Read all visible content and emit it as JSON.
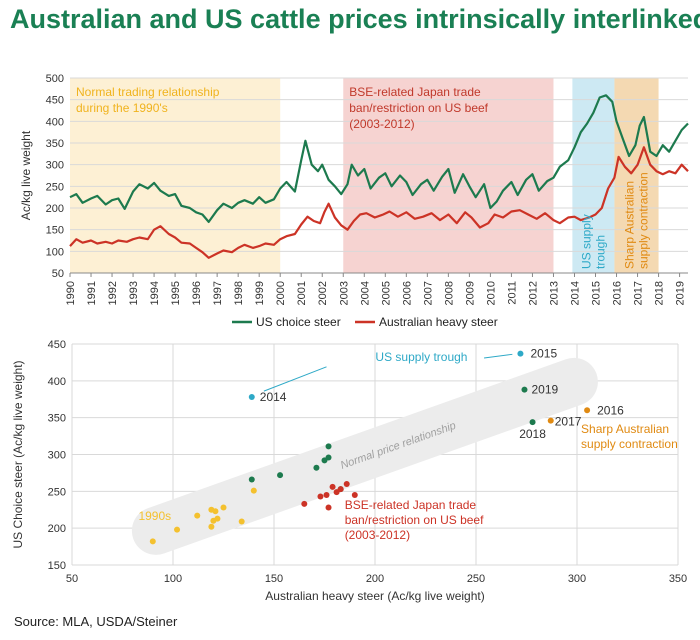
{
  "title": "Australian and US cattle prices intrinsically interlinked",
  "source": "Source: MLA, USDA/Steiner",
  "colors": {
    "us": "#1d7a4e",
    "aus": "#cc3326",
    "yellow": "#f4c12f",
    "cyan": "#2ea9c7",
    "orange": "#e08a12",
    "red": "#cc3326",
    "band": "#ececec"
  },
  "chart_data": [
    {
      "type": "line",
      "ylabel": "Ac/kg live weight",
      "ylim": [
        50,
        500
      ],
      "yticks": [
        50,
        100,
        150,
        200,
        250,
        300,
        350,
        400,
        450,
        500
      ],
      "xlim": [
        1990,
        2019.4
      ],
      "xticks": [
        "1990",
        "1991",
        "1992",
        "1993",
        "1994",
        "1995",
        "1996",
        "1997",
        "1998",
        "1999",
        "2000",
        "2001",
        "2002",
        "2003",
        "2004",
        "2005",
        "2006",
        "2007",
        "2008",
        "2009",
        "2010",
        "2011",
        "2012",
        "2013",
        "2014",
        "2015",
        "2016",
        "2017",
        "2018",
        "2019"
      ],
      "legend_position": "bottom",
      "shaded_periods": [
        {
          "label_lines": [
            "Normal trading relationship",
            "during the 1990's"
          ],
          "start": 1990.0,
          "end": 2000.0,
          "fill": "#fdf0d4",
          "text_color": "#f0b31e",
          "orientation": "horizontal"
        },
        {
          "label_lines": [
            "BSE-related Japan trade",
            "ban/restriction on US beef",
            "(2003-2012)"
          ],
          "start": 2003.0,
          "end": 2013.0,
          "fill": "#f6d3d1",
          "text_color": "#c0392b",
          "orientation": "horizontal"
        },
        {
          "label_lines": [
            "US supply",
            "trough"
          ],
          "start": 2013.9,
          "end": 2015.9,
          "fill": "#cde9f3",
          "text_color": "#2ea9c7",
          "orientation": "vertical"
        },
        {
          "label_lines": [
            "Sharp Australian",
            "supply contraction"
          ],
          "start": 2015.9,
          "end": 2018.0,
          "fill": "#f4d9b2",
          "text_color": "#e08a12",
          "orientation": "vertical"
        }
      ],
      "series": [
        {
          "name": "US choice steer",
          "points": [
            [
              1990.0,
              225
            ],
            [
              1990.3,
              232
            ],
            [
              1990.6,
              212
            ],
            [
              1991.0,
              222
            ],
            [
              1991.3,
              228
            ],
            [
              1991.7,
              208
            ],
            [
              1992.0,
              218
            ],
            [
              1992.3,
              222
            ],
            [
              1992.6,
              198
            ],
            [
              1993.0,
              238
            ],
            [
              1993.3,
              255
            ],
            [
              1993.7,
              245
            ],
            [
              1994.0,
              258
            ],
            [
              1994.3,
              240
            ],
            [
              1994.7,
              228
            ],
            [
              1995.0,
              232
            ],
            [
              1995.3,
              205
            ],
            [
              1995.7,
              200
            ],
            [
              1996.0,
              190
            ],
            [
              1996.3,
              185
            ],
            [
              1996.6,
              168
            ],
            [
              1997.0,
              195
            ],
            [
              1997.3,
              210
            ],
            [
              1997.7,
              200
            ],
            [
              1998.0,
              212
            ],
            [
              1998.3,
              218
            ],
            [
              1998.7,
              210
            ],
            [
              1999.0,
              225
            ],
            [
              1999.3,
              212
            ],
            [
              1999.7,
              220
            ],
            [
              2000.0,
              245
            ],
            [
              2000.3,
              260
            ],
            [
              2000.7,
              238
            ],
            [
              2001.0,
              310
            ],
            [
              2001.2,
              355
            ],
            [
              2001.5,
              300
            ],
            [
              2001.8,
              285
            ],
            [
              2002.0,
              300
            ],
            [
              2002.3,
              265
            ],
            [
              2002.6,
              250
            ],
            [
              2002.9,
              232
            ],
            [
              2003.2,
              255
            ],
            [
              2003.4,
              300
            ],
            [
              2003.7,
              275
            ],
            [
              2004.0,
              290
            ],
            [
              2004.3,
              245
            ],
            [
              2004.7,
              270
            ],
            [
              2005.0,
              280
            ],
            [
              2005.3,
              250
            ],
            [
              2005.7,
              275
            ],
            [
              2006.0,
              260
            ],
            [
              2006.3,
              230
            ],
            [
              2006.7,
              255
            ],
            [
              2007.0,
              265
            ],
            [
              2007.3,
              240
            ],
            [
              2007.7,
              272
            ],
            [
              2008.0,
              290
            ],
            [
              2008.3,
              235
            ],
            [
              2008.7,
              278
            ],
            [
              2009.0,
              250
            ],
            [
              2009.3,
              225
            ],
            [
              2009.7,
              255
            ],
            [
              2010.0,
              200
            ],
            [
              2010.3,
              215
            ],
            [
              2010.6,
              240
            ],
            [
              2011.0,
              260
            ],
            [
              2011.3,
              230
            ],
            [
              2011.7,
              265
            ],
            [
              2012.0,
              278
            ],
            [
              2012.3,
              240
            ],
            [
              2012.7,
              262
            ],
            [
              2013.0,
              270
            ],
            [
              2013.3,
              295
            ],
            [
              2013.7,
              310
            ],
            [
              2014.0,
              340
            ],
            [
              2014.3,
              375
            ],
            [
              2014.6,
              395
            ],
            [
              2014.9,
              420
            ],
            [
              2015.2,
              455
            ],
            [
              2015.5,
              460
            ],
            [
              2015.8,
              445
            ],
            [
              2016.0,
              400
            ],
            [
              2016.3,
              360
            ],
            [
              2016.6,
              320
            ],
            [
              2016.9,
              345
            ],
            [
              2017.1,
              390
            ],
            [
              2017.3,
              410
            ],
            [
              2017.6,
              330
            ],
            [
              2017.9,
              320
            ],
            [
              2018.2,
              345
            ],
            [
              2018.5,
              330
            ],
            [
              2018.8,
              355
            ],
            [
              2019.1,
              380
            ],
            [
              2019.4,
              395
            ]
          ]
        },
        {
          "name": "Australian heavy steer",
          "points": [
            [
              1990.0,
              112
            ],
            [
              1990.3,
              128
            ],
            [
              1990.6,
              120
            ],
            [
              1991.0,
              125
            ],
            [
              1991.3,
              118
            ],
            [
              1991.7,
              122
            ],
            [
              1992.0,
              118
            ],
            [
              1992.3,
              125
            ],
            [
              1992.7,
              122
            ],
            [
              1993.0,
              128
            ],
            [
              1993.3,
              132
            ],
            [
              1993.7,
              128
            ],
            [
              1994.0,
              150
            ],
            [
              1994.3,
              158
            ],
            [
              1994.7,
              140
            ],
            [
              1995.0,
              132
            ],
            [
              1995.3,
              120
            ],
            [
              1995.7,
              118
            ],
            [
              1996.0,
              108
            ],
            [
              1996.3,
              98
            ],
            [
              1996.6,
              85
            ],
            [
              1997.0,
              95
            ],
            [
              1997.3,
              102
            ],
            [
              1997.7,
              98
            ],
            [
              1998.0,
              108
            ],
            [
              1998.3,
              115
            ],
            [
              1998.7,
              108
            ],
            [
              1999.0,
              112
            ],
            [
              1999.3,
              118
            ],
            [
              1999.7,
              115
            ],
            [
              2000.0,
              128
            ],
            [
              2000.3,
              135
            ],
            [
              2000.7,
              140
            ],
            [
              2001.0,
              162
            ],
            [
              2001.3,
              180
            ],
            [
              2001.6,
              170
            ],
            [
              2001.9,
              165
            ],
            [
              2002.1,
              190
            ],
            [
              2002.3,
              210
            ],
            [
              2002.6,
              178
            ],
            [
              2002.9,
              160
            ],
            [
              2003.2,
              150
            ],
            [
              2003.5,
              170
            ],
            [
              2003.8,
              185
            ],
            [
              2004.1,
              188
            ],
            [
              2004.5,
              178
            ],
            [
              2004.9,
              185
            ],
            [
              2005.2,
              192
            ],
            [
              2005.6,
              180
            ],
            [
              2006.0,
              190
            ],
            [
              2006.4,
              175
            ],
            [
              2006.8,
              180
            ],
            [
              2007.2,
              188
            ],
            [
              2007.6,
              172
            ],
            [
              2008.0,
              185
            ],
            [
              2008.4,
              165
            ],
            [
              2008.8,
              190
            ],
            [
              2009.1,
              178
            ],
            [
              2009.5,
              155
            ],
            [
              2009.9,
              165
            ],
            [
              2010.2,
              185
            ],
            [
              2010.6,
              178
            ],
            [
              2011.0,
              192
            ],
            [
              2011.4,
              195
            ],
            [
              2011.8,
              185
            ],
            [
              2012.2,
              175
            ],
            [
              2012.6,
              188
            ],
            [
              2013.0,
              172
            ],
            [
              2013.3,
              165
            ],
            [
              2013.7,
              178
            ],
            [
              2014.0,
              180
            ],
            [
              2014.3,
              172
            ],
            [
              2014.7,
              178
            ],
            [
              2015.0,
              185
            ],
            [
              2015.3,
              200
            ],
            [
              2015.6,
              245
            ],
            [
              2015.9,
              270
            ],
            [
              2016.1,
              318
            ],
            [
              2016.4,
              295
            ],
            [
              2016.7,
              280
            ],
            [
              2017.0,
              300
            ],
            [
              2017.3,
              340
            ],
            [
              2017.6,
              300
            ],
            [
              2017.9,
              285
            ],
            [
              2018.2,
              278
            ],
            [
              2018.5,
              285
            ],
            [
              2018.8,
              280
            ],
            [
              2019.1,
              300
            ],
            [
              2019.4,
              285
            ]
          ]
        }
      ]
    },
    {
      "type": "scatter",
      "xlabel": "Australian heavy steer (Ac/kg live weight)",
      "ylabel": "US Choice steer (Ac/kg live weight)",
      "xlim": [
        50,
        350
      ],
      "ylim": [
        150,
        450
      ],
      "xticks": [
        50,
        100,
        150,
        200,
        250,
        300,
        350
      ],
      "yticks": [
        150,
        200,
        250,
        300,
        350,
        400,
        450
      ],
      "band_label": "Normal price relationship",
      "groups": [
        {
          "label_lines": [
            "1990s"
          ],
          "color_key": "yellow",
          "points": [
            [
              90,
              182
            ],
            [
              102,
              198
            ],
            [
              112,
              217
            ],
            [
              119,
              202
            ],
            [
              119,
              225
            ],
            [
              120,
              210
            ],
            [
              121,
              223
            ],
            [
              122,
              213
            ],
            [
              125,
              228
            ],
            [
              134,
              209
            ],
            [
              140,
              251
            ]
          ]
        },
        {
          "label_lines": [],
          "color_key": "us",
          "points": [
            [
              139,
              266
            ],
            [
              153,
              272
            ],
            [
              171,
              282
            ],
            [
              175,
              292
            ],
            [
              177,
              311
            ],
            [
              177,
              296
            ],
            [
              183,
              253
            ]
          ]
        },
        {
          "label_lines": [
            "BSE-related Japan trade",
            "ban/restriction on US beef",
            "(2003-2012)"
          ],
          "color_key": "red",
          "points": [
            [
              165,
              233
            ],
            [
              173,
              243
            ],
            [
              176,
              245
            ],
            [
              177,
              228
            ],
            [
              179,
              256
            ],
            [
              181,
              249
            ],
            [
              183,
              253
            ],
            [
              186,
              260
            ],
            [
              190,
              245
            ]
          ]
        },
        {
          "label_lines": [
            "US supply trough"
          ],
          "color_key": "cyan",
          "points": [
            [
              139,
              378
            ],
            [
              272,
              437
            ]
          ]
        },
        {
          "label_lines": [
            "Sharp Australian",
            "supply contraction"
          ],
          "color_key": "orange",
          "points": [
            [
              287,
              346
            ],
            [
              305,
              360
            ]
          ]
        },
        {
          "label_lines": [],
          "color_key": "us",
          "points": [
            [
              274,
              388
            ],
            [
              278,
              344
            ]
          ]
        }
      ],
      "point_labels": [
        {
          "text": "2014",
          "x": 139,
          "y": 378
        },
        {
          "text": "2015",
          "x": 272,
          "y": 437
        },
        {
          "text": "2019",
          "x": 274,
          "y": 388
        },
        {
          "text": "2016",
          "x": 305,
          "y": 360
        },
        {
          "text": "2017",
          "x": 287,
          "y": 346
        },
        {
          "text": "2018",
          "x": 278,
          "y": 344
        }
      ]
    }
  ]
}
